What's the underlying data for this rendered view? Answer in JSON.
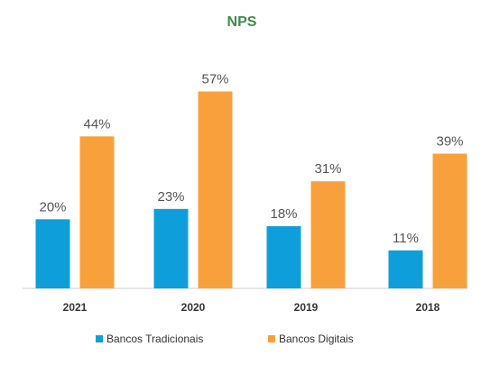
{
  "colors": {
    "title": "#3f8a4f",
    "series_1": "#0e9fdb",
    "series_2": "#f8a13c",
    "axis": "#d0d0d0"
  },
  "chart_data": {
    "type": "bar",
    "title": "NPS",
    "categories": [
      "2021",
      "2020",
      "2019",
      "2018"
    ],
    "series": [
      {
        "name": "Bancos Tradicionais",
        "values": [
          20,
          23,
          18,
          11
        ],
        "labels": [
          "20%",
          "23%",
          "18%",
          "11%"
        ]
      },
      {
        "name": "Bancos Digitais",
        "values": [
          44,
          57,
          31,
          39
        ],
        "labels": [
          "44%",
          "57%",
          "31%",
          "39%"
        ]
      }
    ],
    "xlabel": "",
    "ylabel": "",
    "ylim": [
      0,
      60
    ],
    "grid": false,
    "legend_position": "bottom"
  }
}
